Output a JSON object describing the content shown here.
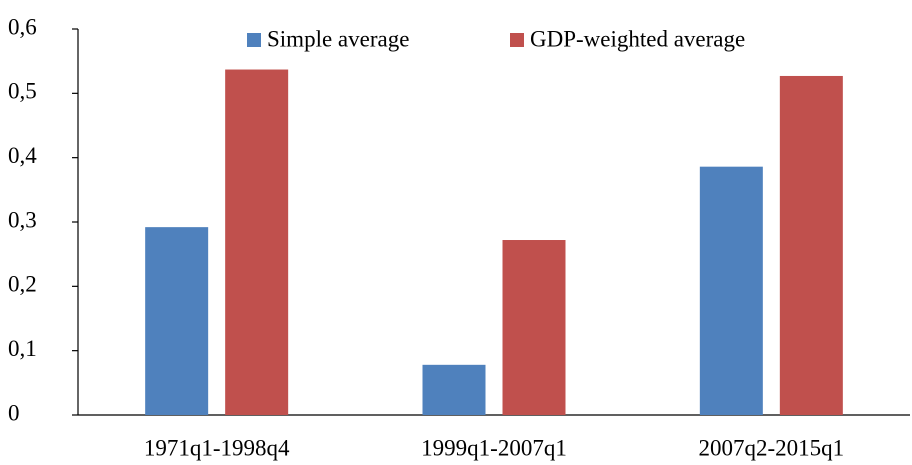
{
  "chart_data": {
    "type": "bar",
    "categories": [
      "1971q1-1998q4",
      "1999q1-2007q1",
      "2007q2-2015q1"
    ],
    "series": [
      {
        "name": "Simple average",
        "color": "#4f81bd",
        "values": [
          0.292,
          0.078,
          0.386
        ]
      },
      {
        "name": "GDP-weighted average",
        "color": "#c0504d",
        "values": [
          0.537,
          0.272,
          0.527
        ]
      }
    ],
    "ylim": [
      0,
      0.6
    ],
    "yticks": [
      0,
      {
        "value": 0.1,
        "label": "0,1"
      },
      {
        "value": 0.2,
        "label": "0,2"
      },
      {
        "value": 0.3,
        "label": "0,3"
      },
      {
        "value": 0.4,
        "label": "0,4"
      },
      {
        "value": 0.5,
        "label": "0,5"
      },
      {
        "value": 0.6,
        "label": "0,6"
      }
    ],
    "grid": false,
    "legend": "top"
  }
}
